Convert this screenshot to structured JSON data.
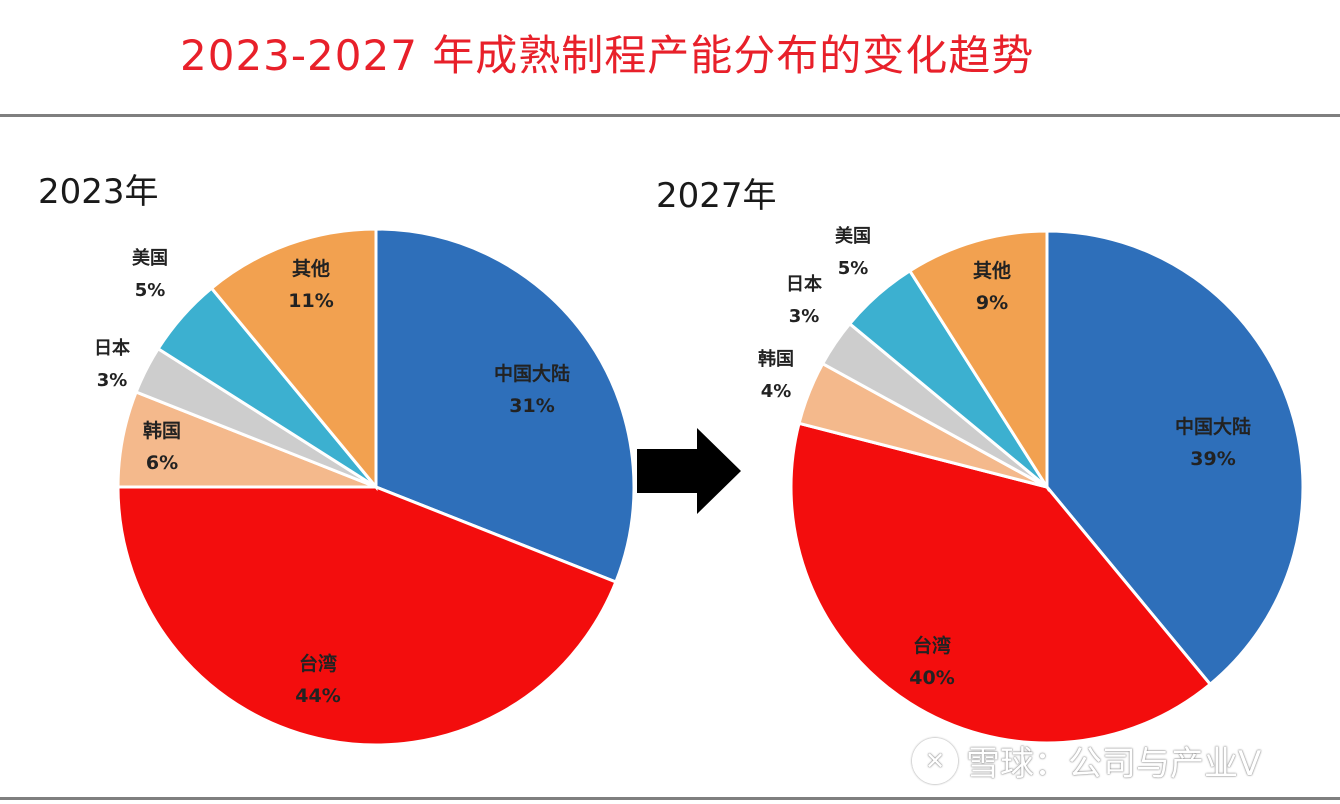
{
  "title": "2023-2027 年成熟制程产能分布的变化趋势",
  "watermark": {
    "text": "雪球：公司与产业V",
    "logo_icon": "xueqiu-logo-icon"
  },
  "colors": {
    "title": "#e8202a",
    "china_mainland": "#2e6fba",
    "taiwan": "#f30d0d",
    "korea": "#f4b98c",
    "japan": "#cdcdcd",
    "usa": "#3cb0d0",
    "other": "#f2a150",
    "arrow": "#000000"
  },
  "arrow_icon": "right-arrow-icon",
  "chart_data": [
    {
      "type": "pie",
      "title": "2023年",
      "categories": [
        "中国大陆",
        "台湾",
        "韩国",
        "日本",
        "美国",
        "其他"
      ],
      "values": [
        31,
        44,
        6,
        3,
        5,
        11
      ],
      "labels": [
        "中国大陆",
        "台湾",
        "韩国",
        "日本",
        "美国",
        "其他"
      ],
      "value_labels": [
        "31%",
        "44%",
        "6%",
        "3%",
        "5%",
        "11%"
      ],
      "unit": "%"
    },
    {
      "type": "pie",
      "title": "2027年",
      "categories": [
        "中国大陆",
        "台湾",
        "韩国",
        "日本",
        "美国",
        "其他"
      ],
      "values": [
        39,
        40,
        4,
        3,
        5,
        9
      ],
      "labels": [
        "中国大陆",
        "台湾",
        "韩国",
        "日本",
        "美国",
        "其他"
      ],
      "value_labels": [
        "39%",
        "40%",
        "4%",
        "3%",
        "5%",
        "9%"
      ],
      "unit": "%"
    }
  ]
}
